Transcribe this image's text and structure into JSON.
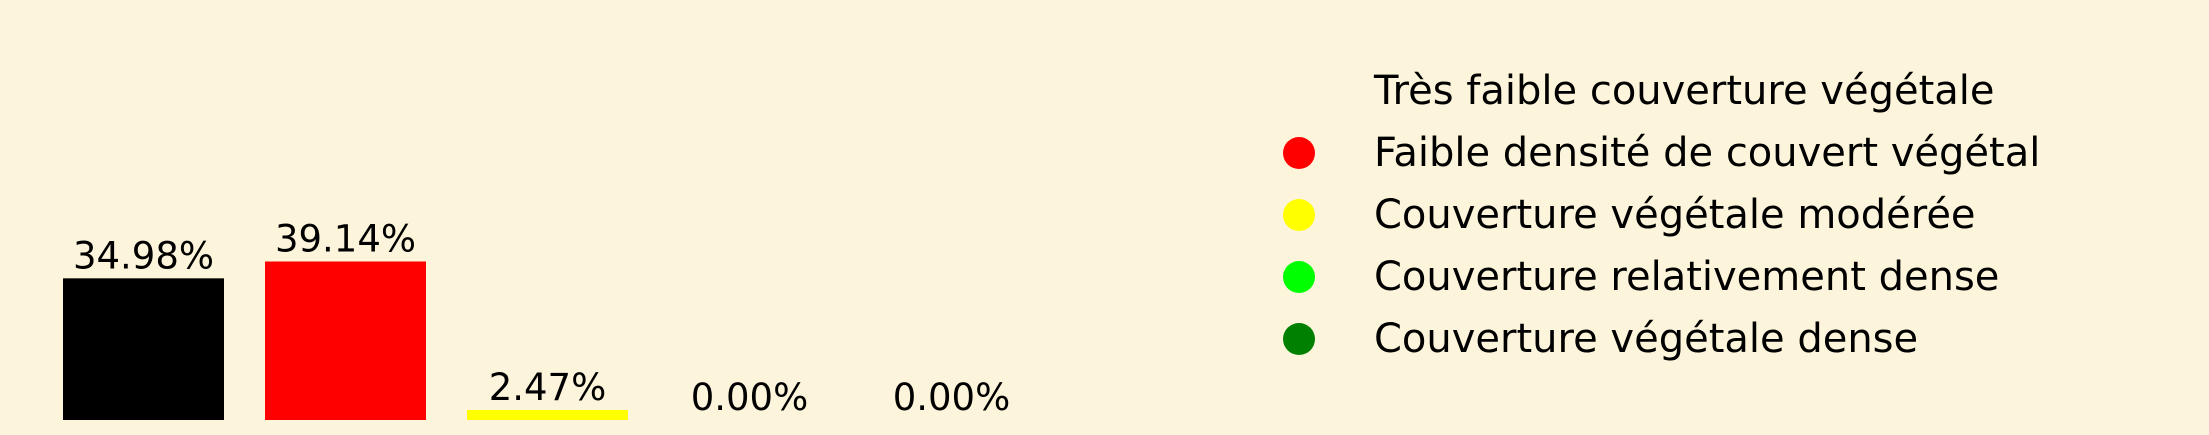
{
  "chart_data": {
    "type": "bar",
    "categories": [
      "Très faible couverture végétale",
      "Faible densité de couvert végétal",
      "Couverture végétale modérée",
      "Couverture relativement dense",
      "Couverture végétale dense"
    ],
    "values": [
      34.98,
      39.14,
      2.47,
      0.0,
      0.0
    ],
    "value_labels": [
      "34.98%",
      "39.14%",
      "2.47%",
      "0.00%",
      "0.00%"
    ],
    "colors": [
      "#000000",
      "#FF0000",
      "#FFFF00",
      "#00FF00",
      "#008000"
    ],
    "ylim": [
      0,
      100
    ],
    "grid": false,
    "legend_position": "top-right",
    "background": "#FDF5DB"
  }
}
